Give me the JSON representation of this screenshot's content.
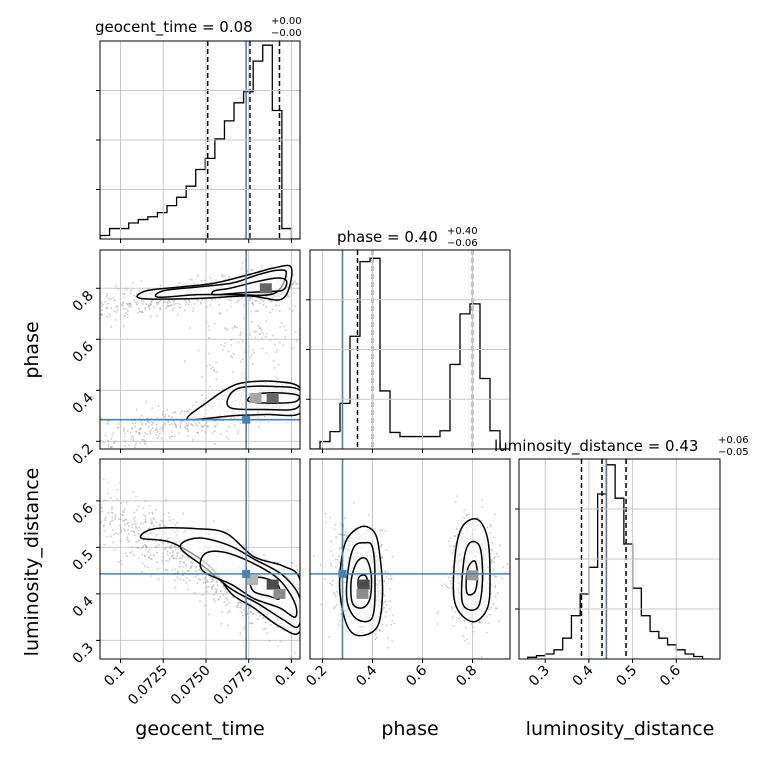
{
  "colors": {
    "truth": "#4682b4",
    "ink": "#000000",
    "grid": "#c8c8c8",
    "scatter": "#9a9a9a"
  },
  "chart_data": [
    {
      "type": "histogram",
      "param": "geocent_time",
      "title": {
        "base": "geocent_time = 0.08",
        "sup": "+0.00",
        "sub": "−0.00"
      },
      "xlim": [
        0.0688,
        0.0805
      ],
      "bin_edges": [
        0.0688,
        0.06936,
        0.06992,
        0.07048,
        0.07104,
        0.0716,
        0.07216,
        0.07272,
        0.07328,
        0.07384,
        0.0744,
        0.07496,
        0.07552,
        0.07608,
        0.07664,
        0.0772,
        0.07776,
        0.07832,
        0.07888,
        0.07944,
        0.08,
        0.0805
      ],
      "counts": [
        0.5,
        1.5,
        1.5,
        2.3,
        2.8,
        3.2,
        3.8,
        4.8,
        6,
        7.6,
        10,
        11.6,
        14.4,
        17,
        19.6,
        21.2,
        25.6,
        27.9,
        18.5,
        1.5,
        0
      ],
      "ylim": [
        0,
        28.5
      ],
      "quantiles": [
        0.0751,
        0.07757,
        0.0793
      ],
      "truth": 0.07735,
      "grid_y": [
        0.25,
        0.5,
        0.75
      ]
    },
    {
      "type": "histogram",
      "param": "phase",
      "title": {
        "base": "phase = 0.40",
        "sup": "+0.40",
        "sub": "−0.06"
      },
      "xlim": [
        0.15,
        0.95
      ],
      "bin_edges": [
        0.15,
        0.19,
        0.23,
        0.27,
        0.31,
        0.35,
        0.39,
        0.43,
        0.47,
        0.51,
        0.55,
        0.59,
        0.63,
        0.67,
        0.71,
        0.75,
        0.79,
        0.83,
        0.87,
        0.91,
        0.95
      ],
      "counts": [
        0,
        0.9,
        2.1,
        5.5,
        13.6,
        22.6,
        23,
        7,
        2,
        1.5,
        1.5,
        1.5,
        1.5,
        2.2,
        10.2,
        16.3,
        17.5,
        8.5,
        2.2,
        0
      ],
      "ylim": [
        0,
        24
      ],
      "quantiles": [
        0.34,
        0.4,
        0.8
      ],
      "truth": 0.28,
      "ticks": [
        0.2,
        0.4,
        0.6,
        0.8
      ],
      "grid_y": [
        0.25,
        0.5,
        0.75
      ]
    },
    {
      "type": "histogram",
      "param": "luminosity_distance",
      "title": {
        "base": "luminosity_distance = 0.43",
        "sup": "+0.06",
        "sub": "−0.05"
      },
      "xlim": [
        0.24,
        0.7
      ],
      "bin_edges": [
        0.26,
        0.28,
        0.3,
        0.32,
        0.34,
        0.36,
        0.38,
        0.4,
        0.42,
        0.44,
        0.46,
        0.48,
        0.5,
        0.52,
        0.54,
        0.56,
        0.58,
        0.6,
        0.62,
        0.64,
        0.66,
        0.68
      ],
      "counts": [
        0.2,
        0.4,
        0.6,
        1.1,
        2.5,
        5.2,
        7.8,
        11,
        19.8,
        23.3,
        19.3,
        13.8,
        8.5,
        5.2,
        3.3,
        2.5,
        1.7,
        1.1,
        0.6,
        0.3,
        0
      ],
      "ylim": [
        0,
        24
      ],
      "quantiles": [
        0.383,
        0.43,
        0.485
      ],
      "truth": 0.44,
      "ticks": [
        0.3,
        0.4,
        0.5,
        0.6
      ],
      "grid_y": [
        0.25,
        0.5,
        0.75
      ]
    },
    {
      "type": "scatter_contour",
      "x_param": "geocent_time",
      "y_param": "phase",
      "xlim": [
        0.0688,
        0.0805
      ],
      "ylim": [
        0.17,
        0.95
      ],
      "truth": [
        0.07735,
        0.285
      ],
      "xticks": [
        0.07,
        0.0725,
        0.075,
        0.0775,
        0.08
      ],
      "yticks": [
        0.2,
        0.4,
        0.6,
        0.8
      ],
      "ylabel": "phase",
      "clusters": [
        {
          "type": "line",
          "x0": 0.0688,
          "y0": 0.72,
          "x1": 0.0795,
          "y1": 0.82,
          "sx": 0.0006,
          "sy": 0.03,
          "n": 420
        },
        {
          "type": "line",
          "x0": 0.0688,
          "y0": 0.2,
          "x1": 0.0795,
          "y1": 0.37,
          "sx": 0.0006,
          "sy": 0.035,
          "n": 380
        },
        {
          "type": "gauss",
          "cx": 0.0785,
          "cy": 0.8,
          "sx": 0.0008,
          "sy": 0.03,
          "n": 260
        },
        {
          "type": "gauss",
          "cx": 0.0789,
          "cy": 0.37,
          "sx": 0.0009,
          "sy": 0.03,
          "n": 320
        },
        {
          "type": "line",
          "x0": 0.0755,
          "y0": 0.5,
          "x1": 0.0795,
          "y1": 0.72,
          "sx": 0.001,
          "sy": 0.08,
          "n": 120
        }
      ],
      "contours": [
        {
          "cx": 0.0782,
          "cy": 0.8,
          "rx": 0.0012,
          "ry": 0.013,
          "rot": -8,
          "pts": [
            [
              0.0755,
              0.775
            ],
            [
              0.077,
              0.782
            ],
            [
              0.0785,
              0.787
            ],
            [
              0.0795,
              0.793
            ],
            [
              0.0797,
              0.83
            ],
            [
              0.0791,
              0.84
            ],
            [
              0.0779,
              0.825
            ],
            [
              0.0764,
              0.8
            ],
            [
              0.0755,
              0.79
            ]
          ]
        },
        {
          "cx": 0.0777,
          "cy": 0.81,
          "pts": [
            [
              0.0722,
              0.765
            ],
            [
              0.0745,
              0.775
            ],
            [
              0.0767,
              0.775
            ],
            [
              0.079,
              0.78
            ],
            [
              0.0797,
              0.86
            ],
            [
              0.0791,
              0.87
            ],
            [
              0.0779,
              0.85
            ],
            [
              0.0765,
              0.82
            ],
            [
              0.0745,
              0.805
            ],
            [
              0.0725,
              0.79
            ]
          ]
        },
        {
          "cx": 0.0772,
          "cy": 0.8,
          "pts": [
            [
              0.0712,
              0.76
            ],
            [
              0.0745,
              0.76
            ],
            [
              0.0775,
              0.77
            ],
            [
              0.0795,
              0.76
            ],
            [
              0.08,
              0.88
            ],
            [
              0.079,
              0.88
            ],
            [
              0.0776,
              0.855
            ],
            [
              0.0755,
              0.82
            ],
            [
              0.0735,
              0.805
            ],
            [
              0.0715,
              0.79
            ]
          ]
        },
        {
          "cx": 0.0789,
          "cy": 0.37,
          "pts": [
            [
              0.0776,
              0.355
            ],
            [
              0.079,
              0.35
            ],
            [
              0.0802,
              0.355
            ],
            [
              0.0804,
              0.38
            ],
            [
              0.0792,
              0.39
            ],
            [
              0.0779,
              0.385
            ],
            [
              0.0775,
              0.37
            ]
          ]
        },
        {
          "cx": 0.0787,
          "cy": 0.37,
          "pts": [
            [
              0.0765,
              0.33
            ],
            [
              0.0785,
              0.325
            ],
            [
              0.0803,
              0.33
            ],
            [
              0.0805,
              0.4
            ],
            [
              0.079,
              0.415
            ],
            [
              0.077,
              0.41
            ],
            [
              0.0763,
              0.37
            ]
          ]
        },
        {
          "cx": 0.0782,
          "cy": 0.36,
          "pts": [
            [
              0.0742,
              0.285
            ],
            [
              0.0765,
              0.3
            ],
            [
              0.0785,
              0.305
            ],
            [
              0.0805,
              0.31
            ],
            [
              0.0805,
              0.41
            ],
            [
              0.079,
              0.435
            ],
            [
              0.0772,
              0.43
            ],
            [
              0.0762,
              0.405
            ],
            [
              0.075,
              0.35
            ],
            [
              0.074,
              0.3
            ]
          ]
        }
      ],
      "dark_cells": [
        [
          0.0785,
          0.8,
          0.6
        ],
        [
          0.0789,
          0.37,
          0.6
        ],
        [
          0.0779,
          0.37,
          0.35
        ]
      ]
    },
    {
      "type": "scatter_contour",
      "x_param": "geocent_time",
      "y_param": "luminosity_distance",
      "xlim": [
        0.0688,
        0.0805
      ],
      "ylim": [
        0.26,
        0.69
      ],
      "truth": [
        0.07735,
        0.443
      ],
      "xticks": [
        0.07,
        0.0725,
        0.075,
        0.0775,
        0.08
      ],
      "yticks": [
        0.3,
        0.4,
        0.5,
        0.6
      ],
      "xlabel": "geocent_time",
      "ylabel": "luminosity_distance",
      "clusters": [
        {
          "type": "line",
          "x0": 0.0694,
          "y0": 0.57,
          "x1": 0.0802,
          "y1": 0.36,
          "sx": 0.0007,
          "sy": 0.035,
          "n": 750
        },
        {
          "type": "gauss",
          "cx": 0.0782,
          "cy": 0.41,
          "sx": 0.0012,
          "sy": 0.03,
          "n": 300
        }
      ],
      "contours": [
        {
          "pts": [
            [
              0.0778,
              0.405
            ],
            [
              0.0787,
              0.395
            ],
            [
              0.0793,
              0.39
            ],
            [
              0.0792,
              0.42
            ],
            [
              0.0783,
              0.435
            ],
            [
              0.0776,
              0.43
            ]
          ]
        },
        {
          "pts": [
            [
              0.0748,
              0.45
            ],
            [
              0.0765,
              0.42
            ],
            [
              0.0778,
              0.39
            ],
            [
              0.0793,
              0.37
            ],
            [
              0.0802,
              0.35
            ],
            [
              0.0802,
              0.38
            ],
            [
              0.0793,
              0.43
            ],
            [
              0.0778,
              0.465
            ],
            [
              0.076,
              0.49
            ],
            [
              0.0749,
              0.485
            ]
          ]
        },
        {
          "pts": [
            [
              0.0735,
              0.5
            ],
            [
              0.075,
              0.455
            ],
            [
              0.0765,
              0.41
            ],
            [
              0.078,
              0.38
            ],
            [
              0.0795,
              0.345
            ],
            [
              0.0804,
              0.33
            ],
            [
              0.0805,
              0.39
            ],
            [
              0.0795,
              0.44
            ],
            [
              0.0778,
              0.475
            ],
            [
              0.0763,
              0.505
            ],
            [
              0.0745,
              0.52
            ]
          ]
        },
        {
          "pts": [
            [
              0.0712,
              0.52
            ],
            [
              0.073,
              0.51
            ],
            [
              0.0752,
              0.46
            ],
            [
              0.0765,
              0.4
            ],
            [
              0.0778,
              0.37
            ],
            [
              0.0793,
              0.33
            ],
            [
              0.0805,
              0.32
            ],
            [
              0.0805,
              0.43
            ],
            [
              0.0795,
              0.46
            ],
            [
              0.0778,
              0.48
            ],
            [
              0.0762,
              0.53
            ],
            [
              0.0745,
              0.54
            ],
            [
              0.072,
              0.54
            ]
          ]
        }
      ],
      "dark_cells": [
        [
          0.0789,
          0.42,
          0.7
        ],
        [
          0.0793,
          0.4,
          0.45
        ],
        [
          0.0777,
          0.43,
          0.3
        ]
      ]
    },
    {
      "type": "scatter_contour",
      "x_param": "phase",
      "y_param": "luminosity_distance",
      "xlim": [
        0.15,
        0.95
      ],
      "ylim": [
        0.26,
        0.69
      ],
      "truth": [
        0.28,
        0.443
      ],
      "xticks": [
        0.2,
        0.4,
        0.6,
        0.8
      ],
      "yticks": [],
      "xlabel": "phase",
      "clusters": [
        {
          "type": "gauss",
          "cx": 0.36,
          "cy": 0.425,
          "sx": 0.05,
          "sy": 0.05,
          "n": 650
        },
        {
          "type": "gauss",
          "cx": 0.8,
          "cy": 0.44,
          "sx": 0.045,
          "sy": 0.055,
          "n": 520
        },
        {
          "type": "line",
          "x0": 0.28,
          "y0": 0.55,
          "x1": 0.44,
          "y1": 0.3,
          "sx": 0.04,
          "sy": 0.03,
          "n": 120
        }
      ],
      "contours": [
        {
          "pts": [
            [
              0.345,
              0.41
            ],
            [
              0.37,
              0.405
            ],
            [
              0.38,
              0.425
            ],
            [
              0.37,
              0.44
            ],
            [
              0.345,
              0.435
            ]
          ]
        },
        {
          "pts": [
            [
              0.32,
              0.38
            ],
            [
              0.36,
              0.37
            ],
            [
              0.39,
              0.39
            ],
            [
              0.395,
              0.44
            ],
            [
              0.375,
              0.475
            ],
            [
              0.34,
              0.47
            ],
            [
              0.315,
              0.43
            ]
          ]
        },
        {
          "pts": [
            [
              0.3,
              0.38
            ],
            [
              0.34,
              0.345
            ],
            [
              0.4,
              0.35
            ],
            [
              0.41,
              0.43
            ],
            [
              0.4,
              0.5
            ],
            [
              0.37,
              0.51
            ],
            [
              0.325,
              0.5
            ],
            [
              0.3,
              0.44
            ]
          ]
        },
        {
          "pts": [
            [
              0.27,
              0.4
            ],
            [
              0.3,
              0.33
            ],
            [
              0.35,
              0.31
            ],
            [
              0.42,
              0.33
            ],
            [
              0.44,
              0.4
            ],
            [
              0.43,
              0.48
            ],
            [
              0.41,
              0.53
            ],
            [
              0.36,
              0.545
            ],
            [
              0.3,
              0.52
            ],
            [
              0.275,
              0.47
            ]
          ]
        },
        {
          "pts": [
            [
              0.78,
              0.4
            ],
            [
              0.81,
              0.405
            ],
            [
              0.82,
              0.44
            ],
            [
              0.81,
              0.47
            ],
            [
              0.785,
              0.46
            ],
            [
              0.775,
              0.43
            ]
          ]
        },
        {
          "pts": [
            [
              0.76,
              0.38
            ],
            [
              0.82,
              0.37
            ],
            [
              0.84,
              0.43
            ],
            [
              0.83,
              0.5
            ],
            [
              0.79,
              0.51
            ],
            [
              0.765,
              0.47
            ]
          ]
        },
        {
          "pts": [
            [
              0.73,
              0.38
            ],
            [
              0.8,
              0.34
            ],
            [
              0.86,
              0.37
            ],
            [
              0.87,
              0.44
            ],
            [
              0.86,
              0.52
            ],
            [
              0.82,
              0.56
            ],
            [
              0.76,
              0.545
            ],
            [
              0.73,
              0.48
            ]
          ]
        }
      ],
      "dark_cells": [
        [
          0.365,
          0.42,
          0.7
        ],
        [
          0.36,
          0.4,
          0.45
        ],
        [
          0.8,
          0.44,
          0.4
        ]
      ]
    }
  ]
}
